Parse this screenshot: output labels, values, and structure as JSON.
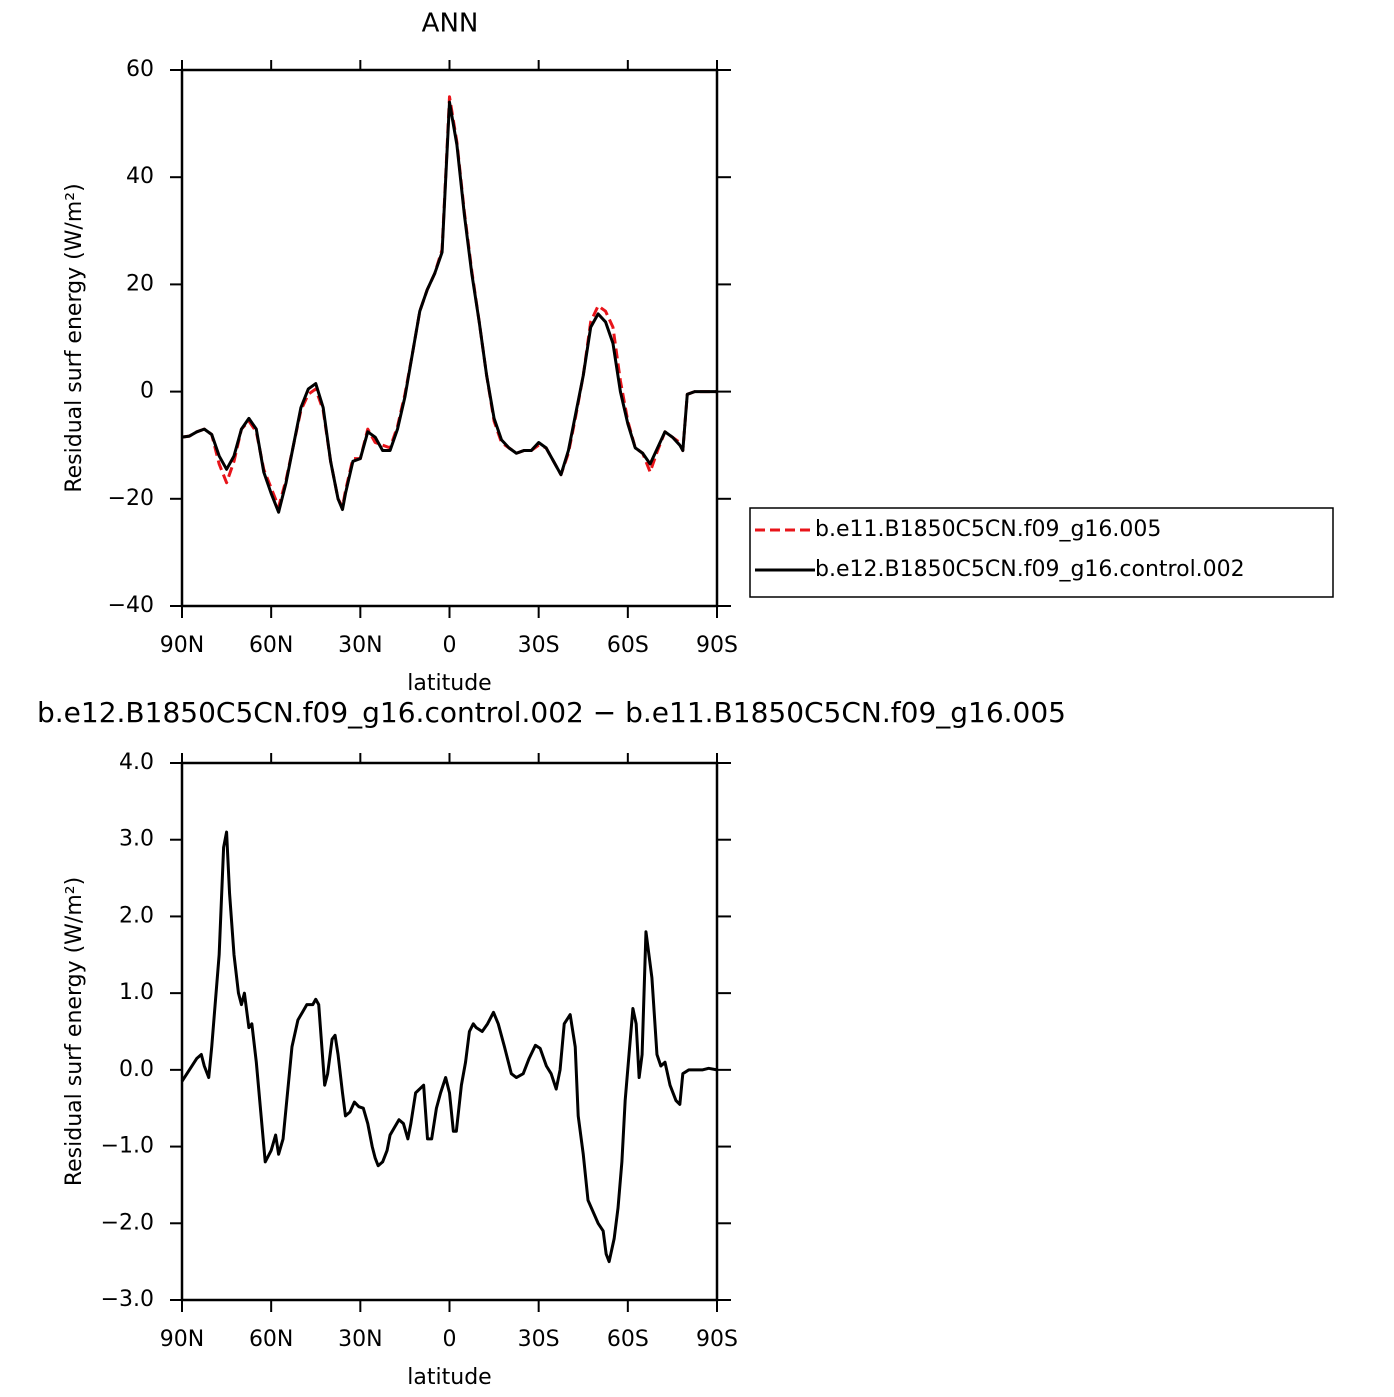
{
  "chart_data": [
    {
      "type": "line",
      "title": "ANN",
      "xlabel": "latitude",
      "ylabel": "Residual surf energy (W/m²)",
      "xlim": [
        90,
        -90
      ],
      "ylim": [
        -40,
        60
      ],
      "xticks": [
        {
          "value": 90,
          "label": "90N"
        },
        {
          "value": 60,
          "label": "60N"
        },
        {
          "value": 30,
          "label": "30N"
        },
        0,
        {
          "value": -30,
          "label": "30S"
        },
        {
          "value": -60,
          "label": "60S"
        },
        {
          "value": -90,
          "label": "90S"
        }
      ],
      "yticks": [
        {
          "value": -40,
          "label": "−40"
        },
        {
          "value": -20,
          "label": "−20"
        },
        0,
        20,
        40,
        60
      ],
      "legend": "outside-right",
      "x": [
        90,
        87.5,
        85,
        82.5,
        80,
        77.5,
        75,
        72.5,
        70,
        67.5,
        65,
        62.5,
        60,
        57.5,
        55,
        52.5,
        50,
        47.5,
        45,
        42.5,
        40,
        37.5,
        36,
        35,
        32.5,
        30,
        27.5,
        25,
        22.5,
        20,
        17.5,
        15,
        12.5,
        10,
        7.5,
        5,
        2.5,
        1.25,
        0,
        -2.5,
        -5,
        -7.5,
        -10,
        -12.5,
        -15,
        -17.5,
        -20,
        -22.5,
        -25,
        -27.5,
        -30,
        -32.5,
        -35,
        -37.5,
        -40,
        -42.5,
        -45,
        -47.5,
        -50,
        -52.5,
        -55,
        -57.5,
        -60,
        -62.5,
        -65,
        -67.5,
        -70,
        -72.5,
        -75,
        -77.5,
        -78.5,
        -80,
        -82.5,
        -85,
        -87.5,
        -90
      ],
      "series": [
        {
          "name": "b.e11.B1850C5CN.f09_g16.005",
          "color": "#e8141a",
          "dash": "dashed",
          "values": [
            -8.5,
            -8.3,
            -7.5,
            -7,
            -8,
            -13.5,
            -17,
            -13,
            -7,
            -5.5,
            -7.5,
            -14.5,
            -18,
            -21.5,
            -16.5,
            -10,
            -3.5,
            -0.5,
            0.5,
            -3.5,
            -13,
            -20,
            -21.5,
            -18.5,
            -12.5,
            -12.5,
            -7,
            -9.5,
            -10,
            -10.5,
            -6.5,
            -0.5,
            7,
            15,
            19,
            22,
            26.5,
            40.5,
            55,
            46.5,
            33.5,
            22.5,
            13,
            3,
            -5.5,
            -9.5,
            -10.5,
            -11.5,
            -11,
            -11,
            -10,
            -10.5,
            -13,
            -15.5,
            -11.5,
            -4.5,
            3,
            13,
            16,
            15,
            12,
            2,
            -5.5,
            -10.5,
            -11.5,
            -15,
            -11,
            -7.5,
            -8.5,
            -9.5,
            -11,
            -0.5,
            0,
            0,
            0,
            0
          ]
        },
        {
          "name": "b.e12.B1850C5CN.f09_g16.control.002",
          "color": "#000000",
          "dash": "solid",
          "values": [
            -8.5,
            -8.3,
            -7.5,
            -7,
            -8,
            -12,
            -14.5,
            -12,
            -7,
            -5,
            -7,
            -15,
            -19,
            -22.5,
            -17,
            -10,
            -3,
            0.5,
            1.5,
            -3,
            -13,
            -20,
            -22,
            -19,
            -13,
            -12.5,
            -7.5,
            -8.5,
            -11,
            -11,
            -7,
            -1,
            7,
            15,
            19,
            22,
            26,
            40,
            54,
            46,
            33,
            22,
            13,
            3,
            -5,
            -9,
            -10.5,
            -11.5,
            -11,
            -11,
            -9.5,
            -10.5,
            -13,
            -15.5,
            -11,
            -4,
            3,
            12,
            14.5,
            13,
            9,
            0,
            -6,
            -10.5,
            -11.5,
            -13.5,
            -10.5,
            -7.5,
            -8.5,
            -10,
            -11,
            -0.5,
            0,
            0,
            0,
            0
          ]
        }
      ]
    },
    {
      "type": "line",
      "title": "b.e12.B1850C5CN.f09_g16.control.002 − b.e11.B1850C5CN.f09_g16.005",
      "xlabel": "latitude",
      "ylabel": "Residual surf energy (W/m²)",
      "xlim": [
        90,
        -90
      ],
      "ylim": [
        -3,
        4
      ],
      "xticks": [
        {
          "value": 90,
          "label": "90N"
        },
        {
          "value": 60,
          "label": "60N"
        },
        {
          "value": 30,
          "label": "30N"
        },
        0,
        {
          "value": -30,
          "label": "30S"
        },
        {
          "value": -60,
          "label": "60S"
        },
        {
          "value": -90,
          "label": "90S"
        }
      ],
      "yticks": [
        {
          "value": -3,
          "label": "−3.0"
        },
        {
          "value": -2,
          "label": "−2.0"
        },
        {
          "value": -1,
          "label": "−1.0"
        },
        {
          "value": 0,
          "label": "0.0"
        },
        {
          "value": 1,
          "label": "1.0"
        },
        {
          "value": 2,
          "label": "2.0"
        },
        {
          "value": 3,
          "label": "3.0"
        },
        {
          "value": 4,
          "label": "4.0"
        }
      ],
      "x": [
        90,
        87.5,
        85,
        83.5,
        82.5,
        81,
        80,
        77.5,
        76,
        75,
        74,
        72.5,
        71,
        70,
        69,
        67.5,
        66.5,
        65,
        63.5,
        62,
        60,
        58.5,
        57.5,
        56,
        55,
        53,
        51,
        49.5,
        48,
        46,
        45,
        44,
        42,
        41,
        39.5,
        38.5,
        37.5,
        36,
        35,
        33.5,
        32,
        30.5,
        29,
        27.5,
        26,
        25,
        24,
        22.5,
        21,
        20,
        18.5,
        17,
        15.5,
        14,
        13,
        11.4,
        8.7,
        7.4,
        6,
        4.4,
        3,
        1.3,
        0,
        -1.3,
        -2.3,
        -4,
        -5.4,
        -6.7,
        -8,
        -9,
        -11,
        -12.8,
        -14.8,
        -16.4,
        -18.5,
        -20.8,
        -22.5,
        -24.8,
        -26.8,
        -28.9,
        -30.5,
        -32.6,
        -34.2,
        -35.9,
        -37.2,
        -38.6,
        -40.6,
        -42.3,
        -43.3,
        -45,
        -46.6,
        -48.3,
        -50,
        -51.7,
        -52.7,
        -53.7,
        -55.4,
        -56.7,
        -58,
        -59.1,
        -60.4,
        -61.7,
        -62.8,
        -63.8,
        -64.8,
        -66.1,
        -67.1,
        -68.1,
        -69.8,
        -71.1,
        -72.5,
        -74.2,
        -76.2,
        -77.5,
        -78.5,
        -80.5,
        -83.2,
        -85.2,
        -87.2,
        -90
      ],
      "color": "#000000",
      "values": [
        -0.15,
        0,
        0.15,
        0.2,
        0.05,
        -0.1,
        0.3,
        1.5,
        2.9,
        3.1,
        2.3,
        1.5,
        1.0,
        0.85,
        1.0,
        0.55,
        0.6,
        0.1,
        -0.55,
        -1.2,
        -1.05,
        -0.85,
        -1.1,
        -0.9,
        -0.5,
        0.3,
        0.65,
        0.75,
        0.85,
        0.85,
        0.92,
        0.85,
        -0.2,
        -0.05,
        0.4,
        0.45,
        0.2,
        -0.3,
        -0.6,
        -0.55,
        -0.42,
        -0.48,
        -0.5,
        -0.7,
        -1.0,
        -1.15,
        -1.25,
        -1.2,
        -1.05,
        -0.85,
        -0.75,
        -0.65,
        -0.7,
        -0.9,
        -0.7,
        -0.3,
        -0.2,
        -0.9,
        -0.9,
        -0.5,
        -0.3,
        -0.1,
        -0.3,
        -0.8,
        -0.8,
        -0.2,
        0.1,
        0.5,
        0.6,
        0.55,
        0.5,
        0.6,
        0.75,
        0.6,
        0.3,
        -0.05,
        -0.1,
        -0.05,
        0.15,
        0.32,
        0.28,
        0.05,
        -0.05,
        -0.25,
        0,
        0.6,
        0.72,
        0.3,
        -0.6,
        -1.1,
        -1.7,
        -1.85,
        -2.0,
        -2.1,
        -2.4,
        -2.5,
        -2.2,
        -1.8,
        -1.2,
        -0.4,
        0.2,
        0.8,
        0.6,
        -0.1,
        0.2,
        1.8,
        1.5,
        1.2,
        0.2,
        0.05,
        0.1,
        -0.2,
        -0.4,
        -0.45,
        -0.05,
        0,
        0,
        0,
        0.02,
        0
      ]
    }
  ]
}
